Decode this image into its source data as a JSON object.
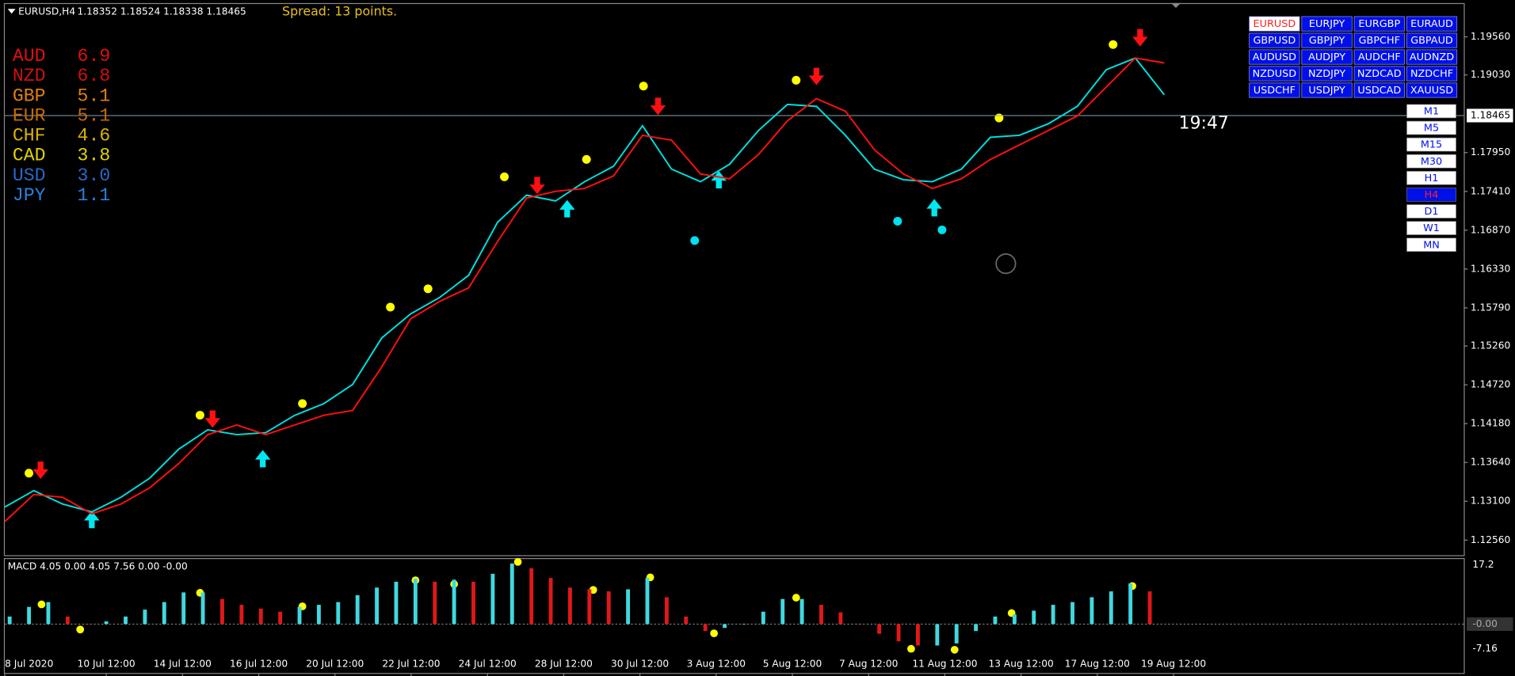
{
  "header": {
    "symbol": "EURUSD,H4",
    "ohlc": "1.18352 1.18524 1.18338 1.18465",
    "spread": "Spread: 13 points."
  },
  "strength": [
    {
      "currency": "AUD",
      "value": "6.9",
      "color": "#e01010"
    },
    {
      "currency": "NZD",
      "value": "6.8",
      "color": "#d01010"
    },
    {
      "currency": "GBP",
      "value": "5.1",
      "color": "#e08010"
    },
    {
      "currency": "EUR",
      "value": "5.1",
      "color": "#c86a00"
    },
    {
      "currency": "CHF",
      "value": "4.6",
      "color": "#d8b400"
    },
    {
      "currency": "CAD",
      "value": "3.8",
      "color": "#e0d400"
    },
    {
      "currency": "USD",
      "value": "3.0",
      "color": "#2868c8"
    },
    {
      "currency": "JPY",
      "value": "1.1",
      "color": "#2a80e0"
    }
  ],
  "symbols": [
    [
      "EURUSD",
      "EURJPY",
      "EURGBP",
      "EURAUD"
    ],
    [
      "GBPUSD",
      "GBPJPY",
      "GBPCHF",
      "GBPAUD"
    ],
    [
      "AUDUSD",
      "AUDJPY",
      "AUDCHF",
      "AUDNZD"
    ],
    [
      "NZDUSD",
      "NZDJPY",
      "NZDCAD",
      "NZDCHF"
    ],
    [
      "USDCHF",
      "USDJPY",
      "USDCAD",
      "XAUUSD"
    ]
  ],
  "active_symbol": "EURUSD",
  "timeframes": [
    "M1",
    "M5",
    "M15",
    "M30",
    "H1",
    "H4",
    "D1",
    "W1",
    "MN"
  ],
  "active_timeframe": "H4",
  "timer": "19:47",
  "price_chart": {
    "ylim": [
      1.1235,
      1.2007
    ],
    "yticks": [
      {
        "value": 1.1956,
        "label": "1.19560"
      },
      {
        "value": 1.1903,
        "label": "1.19030"
      },
      {
        "value": 1.1795,
        "label": "1.17950"
      },
      {
        "value": 1.1741,
        "label": "1.17410"
      },
      {
        "value": 1.1687,
        "label": "1.16870"
      },
      {
        "value": 1.1633,
        "label": "1.16330"
      },
      {
        "value": 1.1579,
        "label": "1.15790"
      },
      {
        "value": 1.1526,
        "label": "1.15260"
      },
      {
        "value": 1.1472,
        "label": "1.14720"
      },
      {
        "value": 1.1418,
        "label": "1.14180"
      },
      {
        "value": 1.1364,
        "label": "1.13640"
      },
      {
        "value": 1.131,
        "label": "1.13100"
      },
      {
        "value": 1.1256,
        "label": "1.12560"
      }
    ],
    "current": {
      "value": 1.18465,
      "label": "1.18465"
    },
    "x_labels": [
      "8 Jul 2020",
      "10 Jul 12:00",
      "14 Jul 12:00",
      "16 Jul 12:00",
      "20 Jul 12:00",
      "22 Jul 12:00",
      "24 Jul 12:00",
      "28 Jul 12:00",
      "30 Jul 12:00",
      "3 Aug 12:00",
      "5 Aug 12:00",
      "7 Aug 12:00",
      "11 Aug 12:00",
      "13 Aug 12:00",
      "17 Aug 12:00",
      "19 Aug 12:00"
    ],
    "series": [
      {
        "color": "#00e0e0",
        "values": [
          1.1302,
          1.13248,
          1.1306,
          1.12952,
          1.13154,
          1.13422,
          1.13825,
          1.14094,
          1.14027,
          1.14054,
          1.14295,
          1.14457,
          1.14725,
          1.1537,
          1.15706,
          1.15934,
          1.16243,
          1.16981,
          1.17357,
          1.17277,
          1.17545,
          1.1776,
          1.18324,
          1.1772,
          1.17545,
          1.17787,
          1.18257,
          1.1862,
          1.18593,
          1.1819,
          1.1772,
          1.17572,
          1.17545,
          1.1772,
          1.18163,
          1.1819,
          1.18351,
          1.18593,
          1.19103,
          1.19265,
          1.18754
        ]
      },
      {
        "color": "#ff1010",
        "values": [
          1.12818,
          1.13194,
          1.13154,
          1.12926,
          1.1306,
          1.13288,
          1.13624,
          1.14027,
          1.14161,
          1.14027,
          1.14161,
          1.14295,
          1.14363,
          1.14967,
          1.15638,
          1.1588,
          1.16068,
          1.16713,
          1.17317,
          1.17411,
          1.17451,
          1.17626,
          1.1819,
          1.18123,
          1.17653,
          1.17586,
          1.17922,
          1.18392,
          1.187,
          1.18526,
          1.17989,
          1.17653,
          1.17451,
          1.17586,
          1.17854,
          1.18056,
          1.18257,
          1.18459,
          1.18862,
          1.19265,
          1.19197
        ]
      }
    ]
  },
  "macd": {
    "label": "MACD 4.05 0.00 4.05 7.56 0.00 -0.00",
    "ylim": [
      -14.44,
      19.16
    ],
    "yticks": [
      17.2,
      -7.16
    ],
    "zero": {
      "value": 0,
      "label": "-0.00"
    },
    "rising_color": "#40d8e0",
    "falling_color": "#e01818",
    "values": [
      2.2,
      5,
      6.4,
      2.2,
      0,
      0.8,
      2.2,
      4.2,
      6.4,
      9.2,
      9.2,
      7.3,
      5.6,
      4.5,
      3.6,
      5,
      5.6,
      6.4,
      8.4,
      10.6,
      12.3,
      13.2,
      12.3,
      12.9,
      12.3,
      14.6,
      17.6,
      16.2,
      13.4,
      10.6,
      10.1,
      9.5,
      10.1,
      13.4,
      7.8,
      2.2,
      -2,
      -1.1,
      0,
      3.6,
      7.3,
      7.3,
      5.6,
      3.4,
      0,
      -2.8,
      -5,
      -6.2,
      -6.2,
      -5.6,
      -2,
      2.2,
      2.8,
      3.9,
      5.6,
      6.4,
      7.8,
      9.5,
      11.8,
      9.5
    ]
  }
}
